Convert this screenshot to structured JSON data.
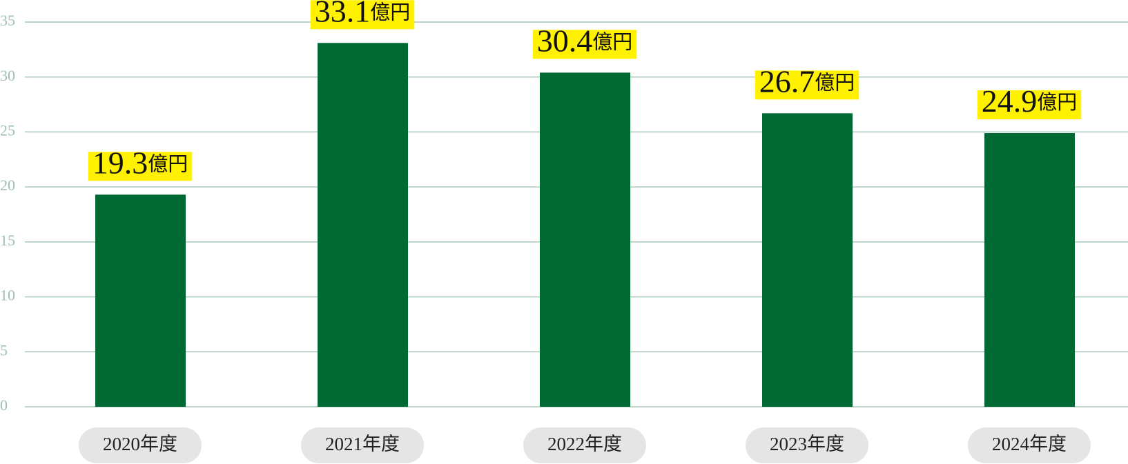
{
  "chart_data": {
    "type": "bar",
    "categories": [
      "2020年度",
      "2021年度",
      "2022年度",
      "2023年度",
      "2024年度"
    ],
    "values": [
      19.3,
      33.1,
      30.4,
      26.7,
      24.9
    ],
    "value_labels": [
      "19.3億円",
      "33.1億円",
      "30.4億円",
      "26.7億円",
      "24.9億円"
    ],
    "color": "#006934",
    "ylim": [
      0,
      35
    ],
    "yticks": [
      0,
      5,
      10,
      15,
      20,
      25,
      30,
      35
    ],
    "grid": true
  }
}
